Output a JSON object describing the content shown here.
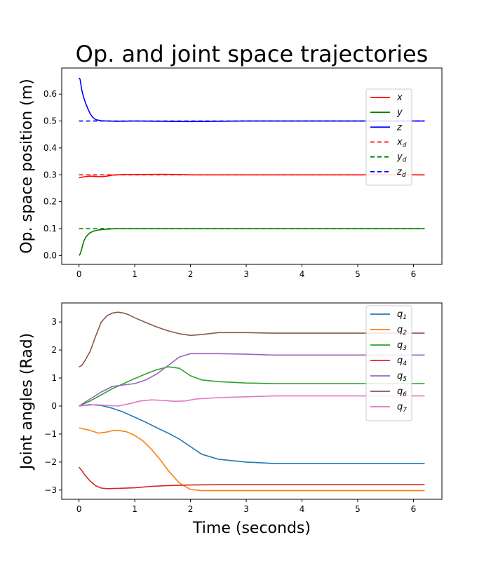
{
  "chart_data": [
    {
      "type": "line",
      "title": "Op. and joint space trajectories",
      "xlabel": "",
      "ylabel": "Op. space position (m)",
      "xlim": [
        -0.31,
        6.51
      ],
      "ylim": [
        -0.033,
        0.697
      ],
      "xticks": [
        0,
        1,
        2,
        3,
        4,
        5,
        6
      ],
      "yticks": [
        0.0,
        0.1,
        0.2,
        0.3,
        0.4,
        0.5,
        0.6
      ],
      "ytick_labels": [
        "0.0",
        "0.1",
        "0.2",
        "0.3",
        "0.4",
        "0.5",
        "0.6"
      ],
      "legend_position": "right",
      "series": [
        {
          "name": "x",
          "label_sub": "",
          "color": "#ff0000",
          "dashed": false,
          "x": [
            0,
            0.1,
            0.2,
            0.3,
            0.4,
            0.5,
            0.6,
            0.8,
            1.0,
            1.5,
            2.0,
            3.0,
            4.0,
            5.0,
            6.2
          ],
          "y": [
            0.289,
            0.293,
            0.295,
            0.294,
            0.293,
            0.295,
            0.299,
            0.301,
            0.301,
            0.302,
            0.3,
            0.3,
            0.3,
            0.3,
            0.3
          ]
        },
        {
          "name": "y",
          "label_sub": "",
          "color": "#008000",
          "dashed": false,
          "x": [
            0,
            0.02,
            0.05,
            0.08,
            0.12,
            0.18,
            0.25,
            0.35,
            0.5,
            0.7,
            1.0,
            2.0,
            3.0,
            4.0,
            5.0,
            6.2
          ],
          "y": [
            0.0,
            0.005,
            0.025,
            0.05,
            0.068,
            0.082,
            0.09,
            0.095,
            0.098,
            0.1,
            0.1,
            0.1,
            0.1,
            0.1,
            0.1,
            0.1
          ]
        },
        {
          "name": "z",
          "label_sub": "",
          "color": "#0000ff",
          "dashed": false,
          "x": [
            0,
            0.02,
            0.05,
            0.08,
            0.12,
            0.16,
            0.2,
            0.25,
            0.3,
            0.4,
            0.5,
            0.7,
            1.0,
            2.0,
            3.0,
            4.0,
            5.0,
            6.2
          ],
          "y": [
            0.66,
            0.655,
            0.615,
            0.59,
            0.565,
            0.545,
            0.527,
            0.513,
            0.505,
            0.501,
            0.5,
            0.499,
            0.5,
            0.498,
            0.5,
            0.5,
            0.5,
            0.5
          ]
        },
        {
          "name": "x",
          "label_sub": "d",
          "color": "#ff0000",
          "dashed": true,
          "x": [
            0,
            6.2
          ],
          "y": [
            0.3,
            0.3
          ]
        },
        {
          "name": "y",
          "label_sub": "d",
          "color": "#008000",
          "dashed": true,
          "x": [
            0,
            6.2
          ],
          "y": [
            0.1,
            0.1
          ]
        },
        {
          "name": "z",
          "label_sub": "d",
          "color": "#0000ff",
          "dashed": true,
          "x": [
            0,
            6.2
          ],
          "y": [
            0.5,
            0.5
          ]
        }
      ]
    },
    {
      "type": "line",
      "title": "",
      "xlabel": "Time (seconds)",
      "ylabel": "Joint angles (Rad)",
      "xlim": [
        -0.31,
        6.51
      ],
      "ylim": [
        -3.33,
        3.68
      ],
      "xticks": [
        0,
        1,
        2,
        3,
        4,
        5,
        6
      ],
      "yticks": [
        -3,
        -2,
        -1,
        0,
        1,
        2,
        3
      ],
      "ytick_labels": [
        "−3",
        "−2",
        "−1",
        "0",
        "1",
        "2",
        "3"
      ],
      "legend_position": "top-right",
      "series": [
        {
          "name": "q",
          "label_sub": "1",
          "color": "#1f77b4",
          "dashed": false,
          "x": [
            0,
            0.2,
            0.4,
            0.6,
            0.8,
            1.0,
            1.2,
            1.4,
            1.6,
            1.8,
            2.0,
            2.2,
            2.5,
            3.0,
            3.5,
            4.0,
            5.0,
            6.2
          ],
          "y": [
            0.0,
            0.05,
            0.02,
            -0.08,
            -0.22,
            -0.4,
            -0.58,
            -0.78,
            -0.97,
            -1.18,
            -1.45,
            -1.72,
            -1.9,
            -2.0,
            -2.05,
            -2.05,
            -2.05,
            -2.05
          ]
        },
        {
          "name": "q",
          "label_sub": "2",
          "color": "#ff7f0e",
          "dashed": false,
          "x": [
            0,
            0.2,
            0.35,
            0.5,
            0.6,
            0.7,
            0.85,
            1.0,
            1.15,
            1.3,
            1.45,
            1.6,
            1.8,
            2.0,
            2.2,
            2.5,
            3.0,
            4.0,
            5.0,
            6.2
          ],
          "y": [
            -0.78,
            -0.87,
            -0.97,
            -0.93,
            -0.88,
            -0.87,
            -0.92,
            -1.05,
            -1.25,
            -1.55,
            -1.9,
            -2.3,
            -2.75,
            -2.98,
            -3.02,
            -3.02,
            -3.02,
            -3.02,
            -3.02,
            -3.02
          ]
        },
        {
          "name": "q",
          "label_sub": "3",
          "color": "#2ca02c",
          "dashed": false,
          "x": [
            0,
            0.2,
            0.4,
            0.6,
            0.8,
            1.0,
            1.2,
            1.4,
            1.6,
            1.8,
            2.0,
            2.2,
            2.5,
            3.0,
            3.5,
            4.0,
            5.0,
            6.2
          ],
          "y": [
            0.0,
            0.18,
            0.4,
            0.62,
            0.8,
            0.98,
            1.15,
            1.3,
            1.4,
            1.35,
            1.08,
            0.93,
            0.87,
            0.82,
            0.8,
            0.8,
            0.8,
            0.8
          ]
        },
        {
          "name": "q",
          "label_sub": "4",
          "color": "#d62728",
          "dashed": false,
          "x": [
            0,
            0.05,
            0.1,
            0.2,
            0.3,
            0.4,
            0.5,
            0.7,
            1.0,
            1.3,
            1.6,
            2.0,
            2.5,
            3.0,
            4.0,
            5.0,
            6.2
          ],
          "y": [
            -2.18,
            -2.3,
            -2.45,
            -2.68,
            -2.85,
            -2.93,
            -2.95,
            -2.94,
            -2.92,
            -2.87,
            -2.84,
            -2.82,
            -2.81,
            -2.81,
            -2.81,
            -2.81,
            -2.81
          ]
        },
        {
          "name": "q",
          "label_sub": "5",
          "color": "#9467bd",
          "dashed": false,
          "x": [
            0,
            0.2,
            0.4,
            0.6,
            0.8,
            1.0,
            1.2,
            1.4,
            1.6,
            1.8,
            2.0,
            2.2,
            2.5,
            3.0,
            3.5,
            4.0,
            5.0,
            6.2
          ],
          "y": [
            0.0,
            0.25,
            0.5,
            0.7,
            0.75,
            0.8,
            0.93,
            1.15,
            1.45,
            1.75,
            1.87,
            1.87,
            1.87,
            1.85,
            1.82,
            1.82,
            1.82,
            1.82
          ]
        },
        {
          "name": "q",
          "label_sub": "6",
          "color": "#8c564b",
          "dashed": false,
          "x": [
            0,
            0.05,
            0.1,
            0.2,
            0.3,
            0.4,
            0.5,
            0.6,
            0.7,
            0.8,
            0.9,
            1.0,
            1.2,
            1.4,
            1.6,
            1.8,
            2.0,
            2.2,
            2.5,
            3.0,
            3.5,
            4.0,
            5.0,
            6.2
          ],
          "y": [
            1.4,
            1.45,
            1.6,
            1.95,
            2.5,
            3.0,
            3.22,
            3.32,
            3.35,
            3.32,
            3.25,
            3.15,
            2.98,
            2.82,
            2.68,
            2.58,
            2.52,
            2.55,
            2.62,
            2.62,
            2.6,
            2.6,
            2.6,
            2.6
          ]
        },
        {
          "name": "q",
          "label_sub": "7",
          "color": "#e377c2",
          "dashed": false,
          "x": [
            0,
            0.3,
            0.5,
            0.7,
            0.9,
            1.1,
            1.3,
            1.5,
            1.7,
            1.9,
            2.1,
            2.5,
            3.0,
            3.5,
            4.0,
            5.0,
            6.2
          ],
          "y": [
            0.0,
            0.05,
            0.02,
            0.0,
            0.08,
            0.18,
            0.22,
            0.2,
            0.17,
            0.18,
            0.25,
            0.3,
            0.33,
            0.36,
            0.36,
            0.36,
            0.36
          ]
        }
      ]
    }
  ]
}
